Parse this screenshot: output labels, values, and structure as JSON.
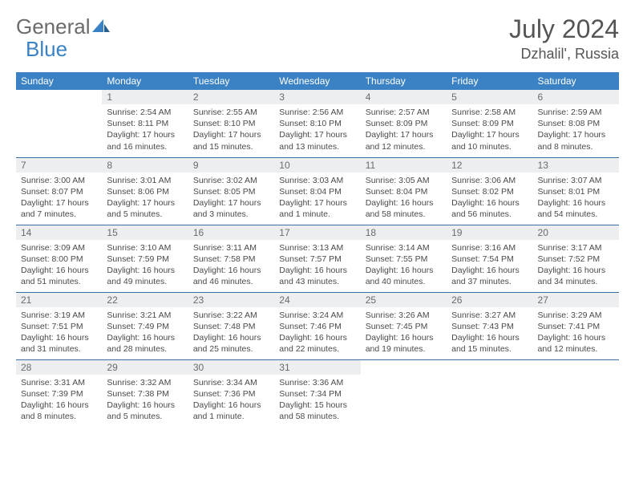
{
  "brand": {
    "part1": "General",
    "part2": "Blue"
  },
  "title": "July 2024",
  "location": "Dzhalil', Russia",
  "colors": {
    "header_bg": "#3b82c4",
    "header_text": "#ffffff",
    "daynum_bg": "#eceef0",
    "daynum_text": "#6b6b6b",
    "cell_border": "#3b6fa0",
    "body_text": "#4a4a4a",
    "title_text": "#555555"
  },
  "weekdays": [
    "Sunday",
    "Monday",
    "Tuesday",
    "Wednesday",
    "Thursday",
    "Friday",
    "Saturday"
  ],
  "weeks": [
    [
      null,
      {
        "n": "1",
        "sr": "2:54 AM",
        "ss": "8:11 PM",
        "dl": "17 hours and 16 minutes."
      },
      {
        "n": "2",
        "sr": "2:55 AM",
        "ss": "8:10 PM",
        "dl": "17 hours and 15 minutes."
      },
      {
        "n": "3",
        "sr": "2:56 AM",
        "ss": "8:10 PM",
        "dl": "17 hours and 13 minutes."
      },
      {
        "n": "4",
        "sr": "2:57 AM",
        "ss": "8:09 PM",
        "dl": "17 hours and 12 minutes."
      },
      {
        "n": "5",
        "sr": "2:58 AM",
        "ss": "8:09 PM",
        "dl": "17 hours and 10 minutes."
      },
      {
        "n": "6",
        "sr": "2:59 AM",
        "ss": "8:08 PM",
        "dl": "17 hours and 8 minutes."
      }
    ],
    [
      {
        "n": "7",
        "sr": "3:00 AM",
        "ss": "8:07 PM",
        "dl": "17 hours and 7 minutes."
      },
      {
        "n": "8",
        "sr": "3:01 AM",
        "ss": "8:06 PM",
        "dl": "17 hours and 5 minutes."
      },
      {
        "n": "9",
        "sr": "3:02 AM",
        "ss": "8:05 PM",
        "dl": "17 hours and 3 minutes."
      },
      {
        "n": "10",
        "sr": "3:03 AM",
        "ss": "8:04 PM",
        "dl": "17 hours and 1 minute."
      },
      {
        "n": "11",
        "sr": "3:05 AM",
        "ss": "8:04 PM",
        "dl": "16 hours and 58 minutes."
      },
      {
        "n": "12",
        "sr": "3:06 AM",
        "ss": "8:02 PM",
        "dl": "16 hours and 56 minutes."
      },
      {
        "n": "13",
        "sr": "3:07 AM",
        "ss": "8:01 PM",
        "dl": "16 hours and 54 minutes."
      }
    ],
    [
      {
        "n": "14",
        "sr": "3:09 AM",
        "ss": "8:00 PM",
        "dl": "16 hours and 51 minutes."
      },
      {
        "n": "15",
        "sr": "3:10 AM",
        "ss": "7:59 PM",
        "dl": "16 hours and 49 minutes."
      },
      {
        "n": "16",
        "sr": "3:11 AM",
        "ss": "7:58 PM",
        "dl": "16 hours and 46 minutes."
      },
      {
        "n": "17",
        "sr": "3:13 AM",
        "ss": "7:57 PM",
        "dl": "16 hours and 43 minutes."
      },
      {
        "n": "18",
        "sr": "3:14 AM",
        "ss": "7:55 PM",
        "dl": "16 hours and 40 minutes."
      },
      {
        "n": "19",
        "sr": "3:16 AM",
        "ss": "7:54 PM",
        "dl": "16 hours and 37 minutes."
      },
      {
        "n": "20",
        "sr": "3:17 AM",
        "ss": "7:52 PM",
        "dl": "16 hours and 34 minutes."
      }
    ],
    [
      {
        "n": "21",
        "sr": "3:19 AM",
        "ss": "7:51 PM",
        "dl": "16 hours and 31 minutes."
      },
      {
        "n": "22",
        "sr": "3:21 AM",
        "ss": "7:49 PM",
        "dl": "16 hours and 28 minutes."
      },
      {
        "n": "23",
        "sr": "3:22 AM",
        "ss": "7:48 PM",
        "dl": "16 hours and 25 minutes."
      },
      {
        "n": "24",
        "sr": "3:24 AM",
        "ss": "7:46 PM",
        "dl": "16 hours and 22 minutes."
      },
      {
        "n": "25",
        "sr": "3:26 AM",
        "ss": "7:45 PM",
        "dl": "16 hours and 19 minutes."
      },
      {
        "n": "26",
        "sr": "3:27 AM",
        "ss": "7:43 PM",
        "dl": "16 hours and 15 minutes."
      },
      {
        "n": "27",
        "sr": "3:29 AM",
        "ss": "7:41 PM",
        "dl": "16 hours and 12 minutes."
      }
    ],
    [
      {
        "n": "28",
        "sr": "3:31 AM",
        "ss": "7:39 PM",
        "dl": "16 hours and 8 minutes."
      },
      {
        "n": "29",
        "sr": "3:32 AM",
        "ss": "7:38 PM",
        "dl": "16 hours and 5 minutes."
      },
      {
        "n": "30",
        "sr": "3:34 AM",
        "ss": "7:36 PM",
        "dl": "16 hours and 1 minute."
      },
      {
        "n": "31",
        "sr": "3:36 AM",
        "ss": "7:34 PM",
        "dl": "15 hours and 58 minutes."
      },
      null,
      null,
      null
    ]
  ]
}
